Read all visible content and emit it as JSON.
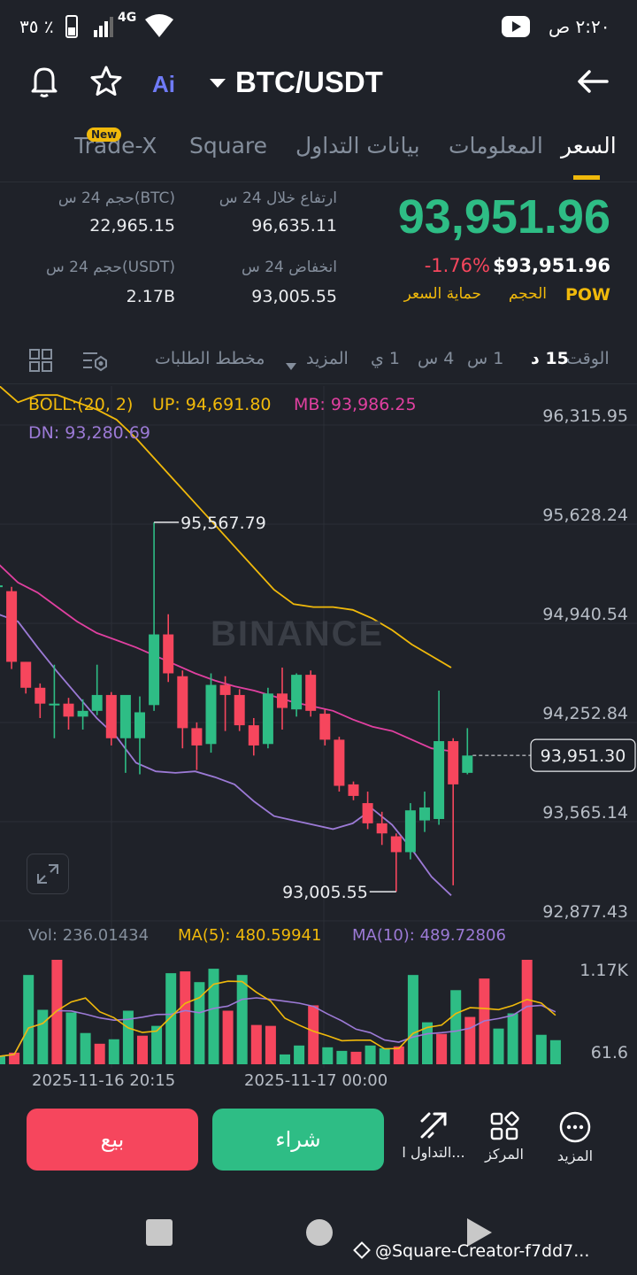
{
  "status": {
    "battery": "٣٥ ٪",
    "network": "4G",
    "time": "٢:٢٠ ص"
  },
  "header": {
    "pair": "BTC/USDT"
  },
  "tabs": [
    {
      "label": "السعر",
      "active": true
    },
    {
      "label": "المعلومات"
    },
    {
      "label": "بيانات التداول"
    },
    {
      "label": "Square"
    },
    {
      "label": "Trade-X",
      "badge": "New"
    }
  ],
  "ticker": {
    "last_price": "93,951.96",
    "usd_price": "$93,951.96",
    "change": "-1.76%",
    "tags": [
      "POW",
      "الحجم",
      "حماية السعر"
    ],
    "high_label": "ارتفاع خلال 24 س",
    "high_value": "96,635.11",
    "low_label": "انخفاض 24 س",
    "low_value": "93,005.55",
    "vol_btc_label": "حجم 24 س(BTC)",
    "vol_btc_value": "22,965.15",
    "vol_usdt_label": "حجم 24 س(USDT)",
    "vol_usdt_value": "2.17B"
  },
  "intervals": {
    "time_label": "الوقت",
    "items": [
      "15 د",
      "1 س",
      "4 س",
      "1 ي"
    ],
    "more": "المزيد",
    "orderbook": "مخطط الطلبات"
  },
  "chart_data": {
    "type": "candlestick",
    "indicator": {
      "name": "BOLL:(20, 2)",
      "up": "UP: 94,691.80",
      "mb": "MB: 93,986.25",
      "dn": "DN: 93,280.69"
    },
    "y_ticks": [
      "96,315.95",
      "95,628.24",
      "94,940.54",
      "94,252.84",
      "93,565.14",
      "92,877.43"
    ],
    "y_tick_values": [
      96315.95,
      95628.24,
      94940.54,
      94252.84,
      93565.14,
      92877.43
    ],
    "current_price_tag": "93,951.30",
    "current_price": 93951.3,
    "high_marker": {
      "label": "95,567.79",
      "value": 95567.79
    },
    "low_marker": {
      "label": "93,005.55",
      "value": 93005.55
    },
    "watermark": "BINANCE",
    "x_ticks": [
      "2025-11-16 20:15",
      "2025-11-17 00:00"
    ],
    "candles": [
      {
        "o": 95130,
        "h": 95200,
        "c": 95130,
        "l": 95050
      },
      {
        "o": 95090,
        "h": 95120,
        "c": 94600,
        "l": 94550
      },
      {
        "o": 94600,
        "h": 94600,
        "c": 94420,
        "l": 94380
      },
      {
        "o": 94420,
        "h": 94450,
        "c": 94310,
        "l": 94210
      },
      {
        "o": 94310,
        "h": 94580,
        "c": 94310,
        "l": 94070
      },
      {
        "o": 94310,
        "h": 94350,
        "c": 94220,
        "l": 94130
      },
      {
        "o": 94220,
        "h": 94340,
        "c": 94260,
        "l": 94130
      },
      {
        "o": 94260,
        "h": 94580,
        "c": 94370,
        "l": 94230
      },
      {
        "o": 94370,
        "h": 94390,
        "c": 94070,
        "l": 94020
      },
      {
        "o": 94070,
        "h": 94360,
        "c": 94370,
        "l": 93830
      },
      {
        "o": 94070,
        "h": 94360,
        "c": 94250,
        "l": 93820
      },
      {
        "o": 94300,
        "h": 95567.79,
        "c": 94790,
        "l": 94260
      },
      {
        "o": 94790,
        "h": 94930,
        "c": 94520,
        "l": 94460
      },
      {
        "o": 94500,
        "h": 94540,
        "c": 94140,
        "l": 94000
      },
      {
        "o": 94140,
        "h": 94180,
        "c": 94020,
        "l": 93850
      },
      {
        "o": 94030,
        "h": 94520,
        "c": 94440,
        "l": 93970
      },
      {
        "o": 94440,
        "h": 94500,
        "c": 94370,
        "l": 94120
      },
      {
        "o": 94370,
        "h": 94410,
        "c": 94160,
        "l": 94120
      },
      {
        "o": 94160,
        "h": 94210,
        "c": 94020,
        "l": 93950
      },
      {
        "o": 94030,
        "h": 94420,
        "c": 94380,
        "l": 94000
      },
      {
        "o": 94380,
        "h": 94560,
        "c": 94280,
        "l": 94130
      },
      {
        "o": 94270,
        "h": 94520,
        "c": 94510,
        "l": 94220
      },
      {
        "o": 94510,
        "h": 94540,
        "c": 94260,
        "l": 94220
      },
      {
        "o": 94240,
        "h": 94270,
        "c": 94060,
        "l": 94020
      },
      {
        "o": 94060,
        "h": 94080,
        "c": 93740,
        "l": 93700
      },
      {
        "o": 93750,
        "h": 93770,
        "c": 93670,
        "l": 93640
      },
      {
        "o": 93620,
        "h": 93700,
        "c": 93480,
        "l": 93440
      },
      {
        "o": 93480,
        "h": 93560,
        "c": 93410,
        "l": 93330
      },
      {
        "o": 93390,
        "h": 93410,
        "c": 93280,
        "l": 93005.55
      },
      {
        "o": 93280,
        "h": 93620,
        "c": 93570,
        "l": 93230
      },
      {
        "o": 93500,
        "h": 93700,
        "c": 93590,
        "l": 93420
      },
      {
        "o": 93510,
        "h": 94400,
        "c": 94050,
        "l": 93470
      },
      {
        "o": 94050,
        "h": 94070,
        "c": 93750,
        "l": 93050
      },
      {
        "o": 93830,
        "h": 94140,
        "c": 93950,
        "l": 93820
      }
    ],
    "boll_up": [
      96520,
      96400,
      96450,
      96450,
      96400,
      96350,
      96280,
      96150,
      96000,
      95850,
      95700,
      95550,
      95400,
      95250,
      95100,
      95000,
      94980,
      94980,
      94960,
      94900,
      94820,
      94720,
      94640,
      94560
    ],
    "boll_mid": [
      95280,
      95150,
      95080,
      94980,
      94880,
      94800,
      94750,
      94700,
      94640,
      94580,
      94520,
      94470,
      94430,
      94400,
      94360,
      94320,
      94290,
      94260,
      94200,
      94150,
      94120,
      94060,
      94000,
      93980
    ],
    "boll_dn": [
      94930,
      94880,
      94700,
      94530,
      94370,
      94210,
      94080,
      93900,
      93840,
      93830,
      93840,
      93800,
      93750,
      93630,
      93530,
      93500,
      93470,
      93440,
      93480,
      93580,
      93470,
      93300,
      93110,
      92980
    ],
    "volume": {
      "label": "Vol: 236.01434",
      "ma5": "MA(5): 480.59941",
      "ma10": "MA(10): 489.72806",
      "ticks": [
        "1.17K",
        "61.6"
      ],
      "max": 1170,
      "values": [
        90,
        130,
        1000,
        610,
        1170,
        580,
        350,
        230,
        280,
        600,
        320,
        430,
        1020,
        1040,
        920,
        1070,
        600,
        1000,
        440,
        430,
        110,
        210,
        660,
        190,
        150,
        140,
        210,
        180,
        200,
        1000,
        470,
        340,
        830,
        530,
        960,
        400,
        570,
        1170,
        330,
        270
      ]
    }
  },
  "actions": {
    "sell": "بيع",
    "buy": "شراء",
    "nav": [
      {
        "label": "المزيد",
        "icon": "more-icon"
      },
      {
        "label": "المركز",
        "icon": "grid-icon"
      },
      {
        "label": "التداول ا...",
        "icon": "trade-icon"
      }
    ]
  },
  "footer": {
    "creator": "@Square-Creator-f7dd7..."
  }
}
